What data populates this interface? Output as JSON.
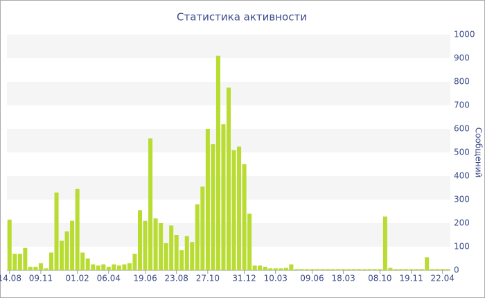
{
  "chart_data": {
    "type": "bar",
    "title": "Статистика активности",
    "y_label": "Сообщений",
    "y_axis_side": "right",
    "grid": "bands",
    "color": "#b8dc32",
    "categories": [
      "14.08",
      null,
      null,
      null,
      null,
      null,
      "09.11",
      null,
      null,
      null,
      null,
      null,
      null,
      "01.02",
      null,
      null,
      null,
      null,
      null,
      "06.04",
      null,
      null,
      null,
      null,
      null,
      null,
      "19.06",
      null,
      null,
      null,
      null,
      null,
      "23.08",
      null,
      null,
      null,
      null,
      null,
      "27.10",
      null,
      null,
      null,
      null,
      null,
      null,
      "31.12",
      null,
      null,
      null,
      null,
      null,
      "10.03",
      null,
      null,
      null,
      null,
      null,
      null,
      "09.06",
      null,
      null,
      null,
      null,
      null,
      "18.03",
      null,
      null,
      null,
      null,
      null,
      null,
      "08.10",
      null,
      null,
      null,
      null,
      null,
      "19.11",
      null,
      null,
      null,
      null,
      null,
      "22.04",
      null
    ],
    "values": [
      215,
      70,
      70,
      95,
      15,
      15,
      30,
      8,
      75,
      330,
      125,
      165,
      210,
      345,
      75,
      50,
      25,
      20,
      25,
      15,
      25,
      20,
      25,
      30,
      70,
      255,
      210,
      560,
      220,
      200,
      115,
      190,
      150,
      85,
      145,
      120,
      280,
      355,
      600,
      535,
      910,
      620,
      775,
      510,
      525,
      450,
      240,
      20,
      20,
      15,
      8,
      8,
      8,
      10,
      25,
      5,
      5,
      5,
      5,
      5,
      5,
      5,
      5,
      5,
      5,
      5,
      5,
      5,
      5,
      5,
      5,
      5,
      228,
      10,
      5,
      5,
      5,
      5,
      5,
      5,
      55,
      5,
      5,
      5,
      5
    ],
    "ylim": [
      0,
      1000
    ],
    "yticks": [
      0,
      100,
      200,
      300,
      400,
      500,
      600,
      700,
      800,
      900,
      1000
    ]
  }
}
